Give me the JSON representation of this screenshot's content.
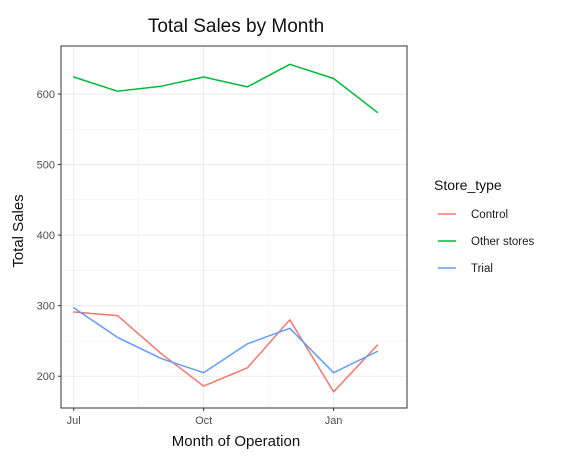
{
  "chart_data": {
    "type": "line",
    "title": "Total Sales by Month",
    "xlabel": "Month of Operation",
    "ylabel": "Total Sales",
    "x": [
      "2018-07",
      "2018-08",
      "2018-09",
      "2018-10",
      "2018-11",
      "2018-12",
      "2019-01",
      "2019-02"
    ],
    "xticks": [
      {
        "value": "2018-07",
        "label": "Jul"
      },
      {
        "value": "2018-10",
        "label": "Oct"
      },
      {
        "value": "2019-01",
        "label": "Jan"
      }
    ],
    "yticks": [
      200,
      300,
      400,
      500,
      600
    ],
    "xlim": [
      "2018-06-22",
      "2019-02-22"
    ],
    "ylim": [
      155,
      668
    ],
    "grid": true,
    "legend": {
      "title": "Store_type",
      "position": "right"
    },
    "series": [
      {
        "name": "Control",
        "color": "#F8766D",
        "values": [
          291,
          286,
          232,
          186,
          212,
          280,
          178,
          244
        ]
      },
      {
        "name": "Other stores",
        "color": "#00BA38",
        "values": [
          624,
          604,
          611,
          624,
          610,
          642,
          622,
          574
        ]
      },
      {
        "name": "Trial",
        "color": "#619CFF",
        "values": [
          297,
          255,
          225,
          205,
          246,
          268,
          205,
          235
        ]
      }
    ]
  }
}
